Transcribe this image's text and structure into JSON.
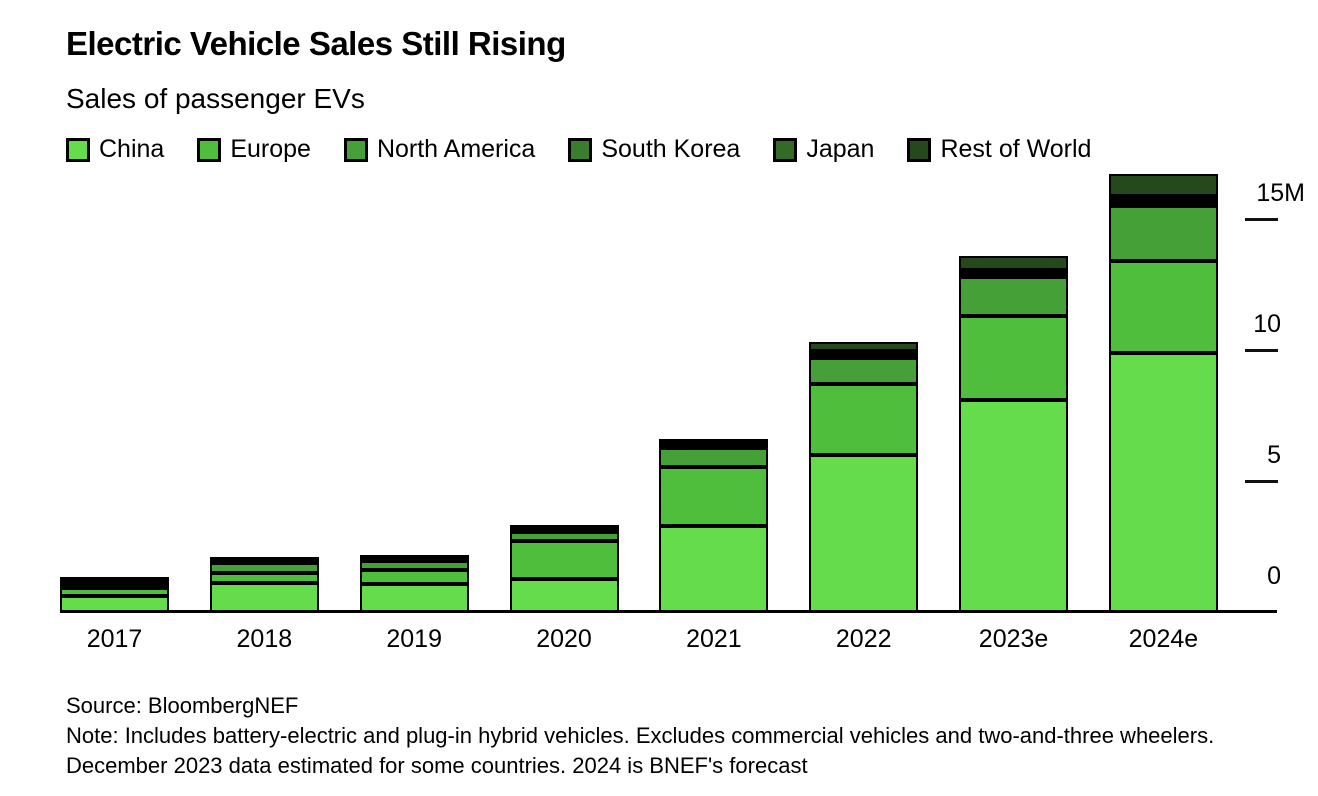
{
  "header": {
    "title": "Electric Vehicle Sales Still Rising",
    "subtitle": "Sales of passenger EVs"
  },
  "chart_data": {
    "type": "bar",
    "stacked": true,
    "unit": "million vehicles",
    "title": "Electric Vehicle Sales Still Rising",
    "subtitle": "Sales of passenger EVs",
    "categories": [
      "2017",
      "2018",
      "2019",
      "2020",
      "2021",
      "2022",
      "2023e",
      "2024e"
    ],
    "series": [
      {
        "name": "China",
        "color": "#64DC4B",
        "values": [
          0.6,
          1.1,
          1.05,
          1.25,
          3.3,
          6.0,
          8.1,
          9.9
        ]
      },
      {
        "name": "Europe",
        "color": "#4FBE3D",
        "values": [
          0.3,
          0.4,
          0.55,
          1.45,
          2.25,
          2.7,
          3.2,
          3.5
        ]
      },
      {
        "name": "North America",
        "color": "#45A038",
        "values": [
          0.2,
          0.38,
          0.35,
          0.35,
          0.73,
          0.98,
          1.5,
          2.1
        ]
      },
      {
        "name": "South Korea",
        "color": "#3A7D2D",
        "values": [
          0.02,
          0.03,
          0.03,
          0.05,
          0.1,
          0.16,
          0.12,
          0.2
        ]
      },
      {
        "name": "Japan",
        "color": "#356928",
        "values": [
          0.06,
          0.05,
          0.04,
          0.03,
          0.05,
          0.1,
          0.14,
          0.19
        ]
      },
      {
        "name": "Rest of World",
        "color": "#25491C",
        "values": [
          0.04,
          0.05,
          0.08,
          0.1,
          0.15,
          0.35,
          0.55,
          0.85
        ]
      }
    ],
    "yticks": [
      {
        "label": "0",
        "value": 0
      },
      {
        "label": "5",
        "value": 5
      },
      {
        "label": "10",
        "value": 10
      },
      {
        "label": "15M",
        "value": 15
      }
    ],
    "ylim": [
      0,
      16.8
    ],
    "xlabel": "",
    "ylabel": "",
    "grid": false,
    "legend_position": "top"
  },
  "footer": {
    "source": "Source: BloombergNEF",
    "note": "Note: Includes battery-electric and plug-in hybrid vehicles. Excludes commercial vehicles and two-and-three wheelers. December 2023 data estimated for some countries. 2024 is BNEF's forecast"
  }
}
